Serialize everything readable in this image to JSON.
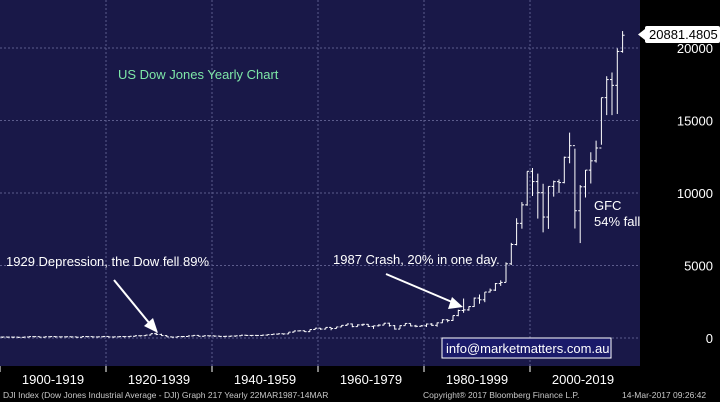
{
  "chart_data": {
    "type": "ohlc",
    "title": "US Dow Jones Yearly Chart",
    "ylim": [
      -1500,
      21400
    ],
    "yticks": [
      0,
      5000,
      10000,
      15000,
      20000
    ],
    "last_value_label": "20881.4805",
    "last_value": 20881.48,
    "x_categories": [
      "1900-1919",
      "1920-1939",
      "1940-1959",
      "1960-1979",
      "1980-1999",
      "2000-2019"
    ],
    "annotations": [
      {
        "text": "1929 Depression, the Dow fell 89%"
      },
      {
        "text": "1987 Crash, 20% in one day."
      },
      {
        "text": "GFC",
        "text2": "54% fall"
      }
    ],
    "series": [
      {
        "year": 1900,
        "open": 66,
        "high": 78,
        "low": 52,
        "close": 70
      },
      {
        "year": 1901,
        "open": 70,
        "high": 78,
        "low": 61,
        "close": 64
      },
      {
        "year": 1902,
        "open": 64,
        "high": 68,
        "low": 59,
        "close": 64
      },
      {
        "year": 1903,
        "open": 64,
        "high": 67,
        "low": 42,
        "close": 49
      },
      {
        "year": 1904,
        "open": 49,
        "high": 73,
        "low": 46,
        "close": 69
      },
      {
        "year": 1905,
        "open": 69,
        "high": 97,
        "low": 68,
        "close": 96
      },
      {
        "year": 1906,
        "open": 96,
        "high": 103,
        "low": 86,
        "close": 94
      },
      {
        "year": 1907,
        "open": 94,
        "high": 96,
        "low": 53,
        "close": 58
      },
      {
        "year": 1908,
        "open": 58,
        "high": 88,
        "low": 58,
        "close": 86
      },
      {
        "year": 1909,
        "open": 86,
        "high": 100,
        "low": 79,
        "close": 99
      },
      {
        "year": 1910,
        "open": 99,
        "high": 99,
        "low": 73,
        "close": 81
      },
      {
        "year": 1911,
        "open": 81,
        "high": 87,
        "low": 72,
        "close": 81
      },
      {
        "year": 1912,
        "open": 81,
        "high": 94,
        "low": 80,
        "close": 88
      },
      {
        "year": 1913,
        "open": 88,
        "high": 88,
        "low": 72,
        "close": 78
      },
      {
        "year": 1914,
        "open": 78,
        "high": 83,
        "low": 53,
        "close": 54
      },
      {
        "year": 1915,
        "open": 54,
        "high": 99,
        "low": 54,
        "close": 99
      },
      {
        "year": 1916,
        "open": 99,
        "high": 110,
        "low": 84,
        "close": 95
      },
      {
        "year": 1917,
        "open": 95,
        "high": 99,
        "low": 65,
        "close": 74
      },
      {
        "year": 1918,
        "open": 74,
        "high": 89,
        "low": 73,
        "close": 82
      },
      {
        "year": 1919,
        "open": 82,
        "high": 119,
        "low": 79,
        "close": 107
      },
      {
        "year": 1920,
        "open": 107,
        "high": 109,
        "low": 66,
        "close": 72
      },
      {
        "year": 1921,
        "open": 72,
        "high": 81,
        "low": 63,
        "close": 81
      },
      {
        "year": 1922,
        "open": 81,
        "high": 103,
        "low": 78,
        "close": 99
      },
      {
        "year": 1923,
        "open": 99,
        "high": 105,
        "low": 85,
        "close": 95
      },
      {
        "year": 1924,
        "open": 95,
        "high": 120,
        "low": 88,
        "close": 120
      },
      {
        "year": 1925,
        "open": 120,
        "high": 159,
        "low": 115,
        "close": 156
      },
      {
        "year": 1926,
        "open": 156,
        "high": 166,
        "low": 135,
        "close": 157
      },
      {
        "year": 1927,
        "open": 157,
        "high": 202,
        "low": 152,
        "close": 202
      },
      {
        "year": 1928,
        "open": 202,
        "high": 300,
        "low": 191,
        "close": 300
      },
      {
        "year": 1929,
        "open": 300,
        "high": 381,
        "low": 198,
        "close": 248
      },
      {
        "year": 1930,
        "open": 248,
        "high": 294,
        "low": 157,
        "close": 164
      },
      {
        "year": 1931,
        "open": 164,
        "high": 194,
        "low": 73,
        "close": 77
      },
      {
        "year": 1932,
        "open": 77,
        "high": 88,
        "low": 41,
        "close": 60
      },
      {
        "year": 1933,
        "open": 60,
        "high": 108,
        "low": 50,
        "close": 100
      },
      {
        "year": 1934,
        "open": 100,
        "high": 110,
        "low": 85,
        "close": 104
      },
      {
        "year": 1935,
        "open": 104,
        "high": 148,
        "low": 96,
        "close": 144
      },
      {
        "year": 1936,
        "open": 144,
        "high": 184,
        "low": 143,
        "close": 180
      },
      {
        "year": 1937,
        "open": 180,
        "high": 194,
        "low": 114,
        "close": 121
      },
      {
        "year": 1938,
        "open": 121,
        "high": 158,
        "low": 99,
        "close": 155
      },
      {
        "year": 1939,
        "open": 155,
        "high": 155,
        "low": 121,
        "close": 150
      },
      {
        "year": 1940,
        "open": 150,
        "high": 152,
        "low": 111,
        "close": 131
      },
      {
        "year": 1941,
        "open": 131,
        "high": 133,
        "low": 106,
        "close": 111
      },
      {
        "year": 1942,
        "open": 111,
        "high": 119,
        "low": 93,
        "close": 119
      },
      {
        "year": 1943,
        "open": 119,
        "high": 146,
        "low": 119,
        "close": 136
      },
      {
        "year": 1944,
        "open": 136,
        "high": 153,
        "low": 135,
        "close": 152
      },
      {
        "year": 1945,
        "open": 152,
        "high": 196,
        "low": 151,
        "close": 193
      },
      {
        "year": 1946,
        "open": 193,
        "high": 213,
        "low": 163,
        "close": 177
      },
      {
        "year": 1947,
        "open": 177,
        "high": 187,
        "low": 163,
        "close": 181
      },
      {
        "year": 1948,
        "open": 181,
        "high": 193,
        "low": 165,
        "close": 177
      },
      {
        "year": 1949,
        "open": 177,
        "high": 201,
        "low": 161,
        "close": 200
      },
      {
        "year": 1950,
        "open": 200,
        "high": 235,
        "low": 197,
        "close": 235
      },
      {
        "year": 1951,
        "open": 235,
        "high": 276,
        "low": 239,
        "close": 269
      },
      {
        "year": 1952,
        "open": 269,
        "high": 292,
        "low": 256,
        "close": 292
      },
      {
        "year": 1953,
        "open": 292,
        "high": 294,
        "low": 255,
        "close": 281
      },
      {
        "year": 1954,
        "open": 281,
        "high": 404,
        "low": 280,
        "close": 404
      },
      {
        "year": 1955,
        "open": 404,
        "high": 488,
        "low": 388,
        "close": 488
      },
      {
        "year": 1956,
        "open": 488,
        "high": 521,
        "low": 462,
        "close": 499
      },
      {
        "year": 1957,
        "open": 499,
        "high": 520,
        "low": 419,
        "close": 436
      },
      {
        "year": 1958,
        "open": 436,
        "high": 583,
        "low": 436,
        "close": 584
      },
      {
        "year": 1959,
        "open": 584,
        "high": 679,
        "low": 574,
        "close": 679
      },
      {
        "year": 1960,
        "open": 679,
        "high": 685,
        "low": 566,
        "close": 615
      },
      {
        "year": 1961,
        "open": 615,
        "high": 734,
        "low": 610,
        "close": 731
      },
      {
        "year": 1962,
        "open": 731,
        "high": 726,
        "low": 535,
        "close": 652
      },
      {
        "year": 1963,
        "open": 652,
        "high": 767,
        "low": 646,
        "close": 763
      },
      {
        "year": 1964,
        "open": 763,
        "high": 891,
        "low": 766,
        "close": 874
      },
      {
        "year": 1965,
        "open": 874,
        "high": 969,
        "low": 840,
        "close": 969
      },
      {
        "year": 1966,
        "open": 969,
        "high": 995,
        "low": 744,
        "close": 785
      },
      {
        "year": 1967,
        "open": 785,
        "high": 943,
        "low": 786,
        "close": 905
      },
      {
        "year": 1968,
        "open": 905,
        "high": 985,
        "low": 825,
        "close": 944
      },
      {
        "year": 1969,
        "open": 944,
        "high": 968,
        "low": 769,
        "close": 800
      },
      {
        "year": 1970,
        "open": 800,
        "high": 842,
        "low": 631,
        "close": 839
      },
      {
        "year": 1971,
        "open": 839,
        "high": 951,
        "low": 798,
        "close": 890
      },
      {
        "year": 1972,
        "open": 890,
        "high": 1036,
        "low": 889,
        "close": 1020
      },
      {
        "year": 1973,
        "open": 1020,
        "high": 1052,
        "low": 788,
        "close": 851
      },
      {
        "year": 1974,
        "open": 851,
        "high": 892,
        "low": 578,
        "close": 616
      },
      {
        "year": 1975,
        "open": 616,
        "high": 882,
        "low": 632,
        "close": 852
      },
      {
        "year": 1976,
        "open": 852,
        "high": 1015,
        "low": 859,
        "close": 1005
      },
      {
        "year": 1977,
        "open": 1005,
        "high": 1000,
        "low": 801,
        "close": 831
      },
      {
        "year": 1978,
        "open": 831,
        "high": 907,
        "low": 743,
        "close": 805
      },
      {
        "year": 1979,
        "open": 805,
        "high": 898,
        "low": 797,
        "close": 839
      },
      {
        "year": 1980,
        "open": 839,
        "high": 1000,
        "low": 759,
        "close": 964
      },
      {
        "year": 1981,
        "open": 964,
        "high": 1024,
        "low": 824,
        "close": 875
      },
      {
        "year": 1982,
        "open": 875,
        "high": 1070,
        "low": 777,
        "close": 1047
      },
      {
        "year": 1983,
        "open": 1047,
        "high": 1287,
        "low": 1027,
        "close": 1259
      },
      {
        "year": 1984,
        "open": 1259,
        "high": 1287,
        "low": 1087,
        "close": 1212
      },
      {
        "year": 1985,
        "open": 1212,
        "high": 1553,
        "low": 1185,
        "close": 1547
      },
      {
        "year": 1986,
        "open": 1547,
        "high": 1956,
        "low": 1502,
        "close": 1896
      },
      {
        "year": 1987,
        "open": 1896,
        "high": 2722,
        "low": 1739,
        "close": 1939
      },
      {
        "year": 1988,
        "open": 1939,
        "high": 2184,
        "low": 1879,
        "close": 2169
      },
      {
        "year": 1989,
        "open": 2169,
        "high": 2791,
        "low": 2144,
        "close": 2753
      },
      {
        "year": 1990,
        "open": 2753,
        "high": 2999,
        "low": 2365,
        "close": 2634
      },
      {
        "year": 1991,
        "open": 2634,
        "high": 3168,
        "low": 2470,
        "close": 3169
      },
      {
        "year": 1992,
        "open": 3169,
        "high": 3413,
        "low": 3137,
        "close": 3301
      },
      {
        "year": 1993,
        "open": 3301,
        "high": 3794,
        "low": 3242,
        "close": 3754
      },
      {
        "year": 1994,
        "open": 3754,
        "high": 3978,
        "low": 3593,
        "close": 3834
      },
      {
        "year": 1995,
        "open": 3834,
        "high": 5216,
        "low": 3832,
        "close": 5117
      },
      {
        "year": 1996,
        "open": 5117,
        "high": 6560,
        "low": 5032,
        "close": 6448
      },
      {
        "year": 1997,
        "open": 6448,
        "high": 8259,
        "low": 6391,
        "close": 7908
      },
      {
        "year": 1998,
        "open": 7908,
        "high": 9374,
        "low": 7539,
        "close": 9181
      },
      {
        "year": 1999,
        "open": 9181,
        "high": 11497,
        "low": 9120,
        "close": 11497
      },
      {
        "year": 2000,
        "open": 11497,
        "high": 11723,
        "low": 9796,
        "close": 10787
      },
      {
        "year": 2001,
        "open": 10787,
        "high": 11337,
        "low": 8236,
        "close": 10021
      },
      {
        "year": 2002,
        "open": 10021,
        "high": 10635,
        "low": 7286,
        "close": 8342
      },
      {
        "year": 2003,
        "open": 8342,
        "high": 10454,
        "low": 7524,
        "close": 10454
      },
      {
        "year": 2004,
        "open": 10454,
        "high": 10854,
        "low": 9750,
        "close": 10783
      },
      {
        "year": 2005,
        "open": 10783,
        "high": 10940,
        "low": 10012,
        "close": 10718
      },
      {
        "year": 2006,
        "open": 10718,
        "high": 12510,
        "low": 10667,
        "close": 12463
      },
      {
        "year": 2007,
        "open": 12463,
        "high": 14164,
        "low": 12050,
        "close": 13265
      },
      {
        "year": 2008,
        "open": 13265,
        "high": 13058,
        "low": 7552,
        "close": 8776
      },
      {
        "year": 2009,
        "open": 8776,
        "high": 10548,
        "low": 6547,
        "close": 10428
      },
      {
        "year": 2010,
        "open": 10428,
        "high": 11585,
        "low": 9686,
        "close": 11578
      },
      {
        "year": 2011,
        "open": 11578,
        "high": 12810,
        "low": 10655,
        "close": 12218
      },
      {
        "year": 2012,
        "open": 12218,
        "high": 13610,
        "low": 12101,
        "close": 13104
      },
      {
        "year": 2013,
        "open": 13104,
        "high": 16577,
        "low": 13328,
        "close": 16577
      },
      {
        "year": 2014,
        "open": 16577,
        "high": 18054,
        "low": 15372,
        "close": 17823
      },
      {
        "year": 2015,
        "open": 17823,
        "high": 18312,
        "low": 15370,
        "close": 17425
      },
      {
        "year": 2016,
        "open": 17425,
        "high": 19975,
        "low": 15450,
        "close": 19763
      },
      {
        "year": 2017,
        "open": 19763,
        "high": 21169,
        "low": 19677,
        "close": 20881
      }
    ]
  },
  "website": "info@marketmatters.com.au",
  "footer": {
    "left": "DJI Index (Dow Jones Industrial Average - DJI) Graph 217  Yearly 22MAR1987-14MAR",
    "center": "Copyright® 2017 Bloomberg Finance L.P.",
    "right": "14-Mar-2017 09:26:42"
  }
}
